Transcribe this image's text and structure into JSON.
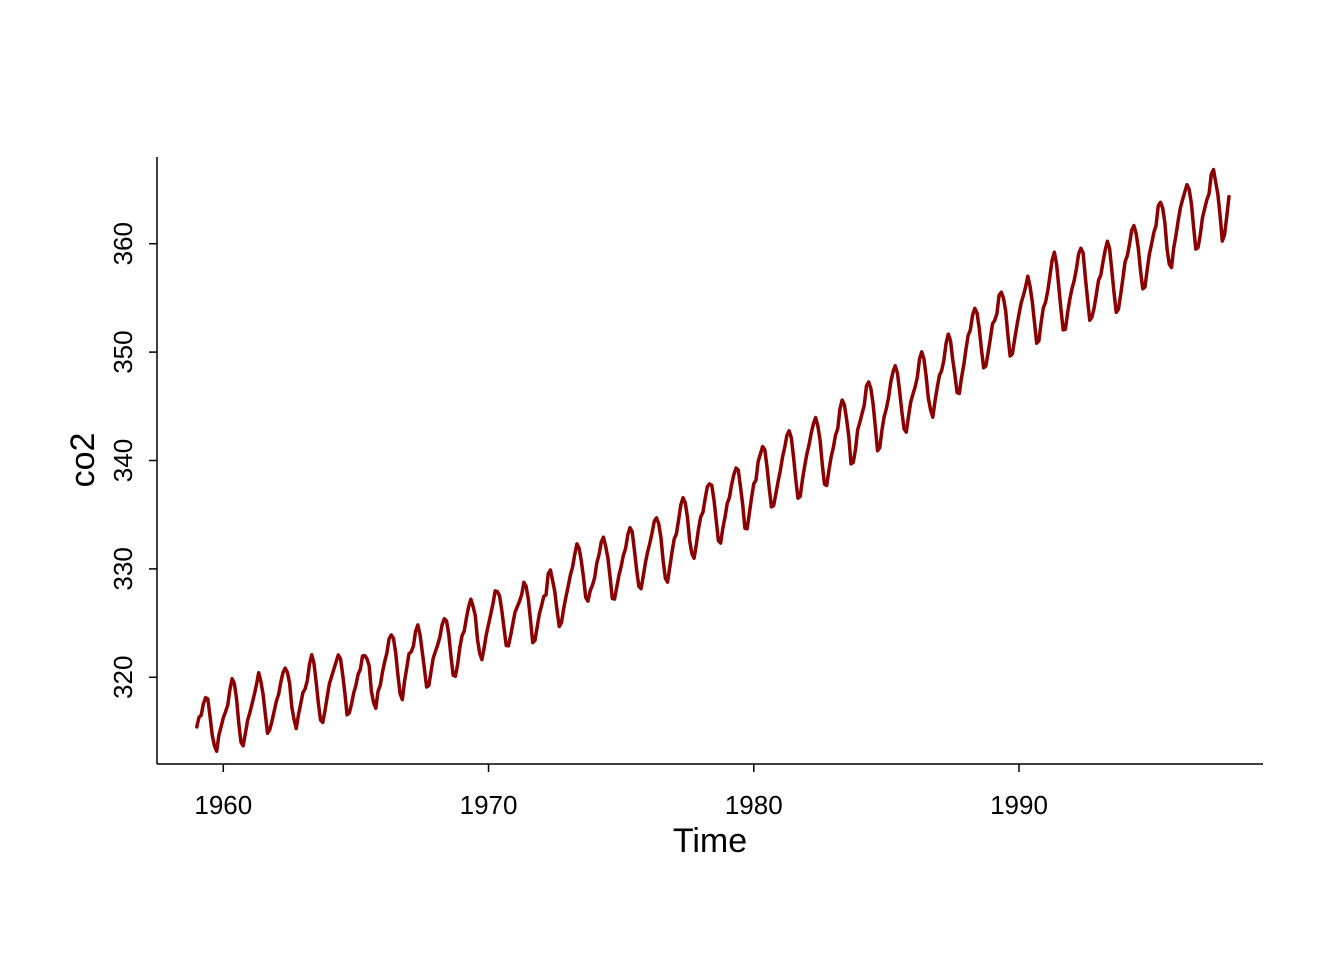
{
  "chart_data": {
    "type": "line",
    "title": "",
    "xlabel": "Time",
    "ylabel": "co2",
    "xlim": [
      1957.5,
      1999.2
    ],
    "ylim": [
      312.0,
      368.0
    ],
    "x_ticks": [
      1960,
      1970,
      1980,
      1990
    ],
    "y_ticks": [
      320,
      330,
      340,
      350,
      360
    ],
    "x_tick_labels": [
      "1960",
      "1970",
      "1980",
      "1990"
    ],
    "y_tick_labels": [
      "320",
      "330",
      "340",
      "350",
      "360"
    ],
    "grid": false,
    "legend": "none",
    "series": [
      {
        "color": "#8B0000",
        "x_start": 1959.0,
        "x_step": 0.0833333,
        "values": [
          315.42,
          316.31,
          316.5,
          317.56,
          318.13,
          318.0,
          316.39,
          314.65,
          313.68,
          313.18,
          314.66,
          315.43,
          316.27,
          316.81,
          317.42,
          318.87,
          319.87,
          319.43,
          318.01,
          315.74,
          314.0,
          313.68,
          314.84,
          316.03,
          316.73,
          317.54,
          318.38,
          319.31,
          320.42,
          319.61,
          318.42,
          316.63,
          314.83,
          315.16,
          315.94,
          316.85,
          317.78,
          318.4,
          319.53,
          320.42,
          320.85,
          320.45,
          319.45,
          317.25,
          316.11,
          315.27,
          316.53,
          317.53,
          318.58,
          318.92,
          319.7,
          321.22,
          322.08,
          321.31,
          319.58,
          317.61,
          316.05,
          315.83,
          316.91,
          318.2,
          319.41,
          320.07,
          320.74,
          321.4,
          322.06,
          321.73,
          320.27,
          318.54,
          316.54,
          316.71,
          317.53,
          318.55,
          319.27,
          320.28,
          320.73,
          321.97,
          322.0,
          321.71,
          321.05,
          318.71,
          317.66,
          317.14,
          318.7,
          319.25,
          320.46,
          321.43,
          322.23,
          323.54,
          323.91,
          323.59,
          322.24,
          320.2,
          318.48,
          317.94,
          319.63,
          320.87,
          322.17,
          322.34,
          322.88,
          324.25,
          324.83,
          323.93,
          322.38,
          320.76,
          319.1,
          319.24,
          320.56,
          321.8,
          322.4,
          322.99,
          323.73,
          324.86,
          325.4,
          325.2,
          323.98,
          321.95,
          320.18,
          320.09,
          321.16,
          322.74,
          323.83,
          324.26,
          325.47,
          326.5,
          327.21,
          326.54,
          325.72,
          323.5,
          322.22,
          321.62,
          322.69,
          323.95,
          324.89,
          325.82,
          326.77,
          327.97,
          327.91,
          327.5,
          326.18,
          324.53,
          322.93,
          322.9,
          323.85,
          324.96,
          326.01,
          326.51,
          327.01,
          327.62,
          328.76,
          328.4,
          327.2,
          325.27,
          323.2,
          323.4,
          324.63,
          325.85,
          326.6,
          327.47,
          327.58,
          329.56,
          329.9,
          328.92,
          327.88,
          326.16,
          324.68,
          325.04,
          326.34,
          327.39,
          328.37,
          329.4,
          330.14,
          331.33,
          332.31,
          331.9,
          330.7,
          329.15,
          327.35,
          327.02,
          327.99,
          328.48,
          329.18,
          330.55,
          331.32,
          332.48,
          332.92,
          332.08,
          331.01,
          329.23,
          327.27,
          327.21,
          328.29,
          329.41,
          330.23,
          331.25,
          331.87,
          333.14,
          333.8,
          333.43,
          331.73,
          329.9,
          328.4,
          328.17,
          329.32,
          330.59,
          331.58,
          332.39,
          333.33,
          334.41,
          334.71,
          334.17,
          332.89,
          330.77,
          329.14,
          328.78,
          330.14,
          331.52,
          332.75,
          333.24,
          334.53,
          335.9,
          336.57,
          336.1,
          334.76,
          332.59,
          331.42,
          330.98,
          332.24,
          333.68,
          334.8,
          335.22,
          336.47,
          337.59,
          337.84,
          337.72,
          336.37,
          334.51,
          332.6,
          332.38,
          333.75,
          334.78,
          336.05,
          336.59,
          337.79,
          338.71,
          339.3,
          339.12,
          337.56,
          335.92,
          333.75,
          333.7,
          335.12,
          336.56,
          337.84,
          338.19,
          339.91,
          340.6,
          341.29,
          341.0,
          339.39,
          337.43,
          335.72,
          335.84,
          336.93,
          338.04,
          339.06,
          340.3,
          341.21,
          342.33,
          342.74,
          342.08,
          340.32,
          338.26,
          336.52,
          336.68,
          338.19,
          339.44,
          340.57,
          341.44,
          342.53,
          343.39,
          343.96,
          343.18,
          341.88,
          339.65,
          337.81,
          337.69,
          339.09,
          340.32,
          341.2,
          342.35,
          342.93,
          344.77,
          345.58,
          345.14,
          343.81,
          342.21,
          339.69,
          339.82,
          340.98,
          342.82,
          343.52,
          344.33,
          345.11,
          346.88,
          347.25,
          346.62,
          345.22,
          343.11,
          340.9,
          341.18,
          342.8,
          344.04,
          344.79,
          345.82,
          347.25,
          348.17,
          348.74,
          348.07,
          346.38,
          344.51,
          342.92,
          342.62,
          344.06,
          345.38,
          346.11,
          346.78,
          347.68,
          349.37,
          350.03,
          349.37,
          347.76,
          345.73,
          344.68,
          343.99,
          345.48,
          346.72,
          347.84,
          348.29,
          349.23,
          350.8,
          351.66,
          351.07,
          349.33,
          347.92,
          346.27,
          346.18,
          347.64,
          348.78,
          350.25,
          351.54,
          352.05,
          353.41,
          354.04,
          353.62,
          352.22,
          350.27,
          348.55,
          348.72,
          349.91,
          351.18,
          352.6,
          352.92,
          353.53,
          355.26,
          355.52,
          354.97,
          353.75,
          351.52,
          349.64,
          349.83,
          351.14,
          352.37,
          353.5,
          354.55,
          355.23,
          356.04,
          357.0,
          356.07,
          354.67,
          352.76,
          350.82,
          351.04,
          352.69,
          354.07,
          354.59,
          355.63,
          357.03,
          358.48,
          359.22,
          358.12,
          356.06,
          353.92,
          352.05,
          352.11,
          353.64,
          354.89,
          355.88,
          356.63,
          357.72,
          359.07,
          359.58,
          359.17,
          356.94,
          354.92,
          352.94,
          353.23,
          354.09,
          355.33,
          356.63,
          357.1,
          358.32,
          359.41,
          360.23,
          359.55,
          357.53,
          355.48,
          353.67,
          353.95,
          355.3,
          356.78,
          358.34,
          358.89,
          359.95,
          361.25,
          361.67,
          360.94,
          359.55,
          357.49,
          355.84,
          356.0,
          357.59,
          359.05,
          359.98,
          361.03,
          361.66,
          363.48,
          363.82,
          363.3,
          361.94,
          359.5,
          358.11,
          357.8,
          359.61,
          360.74,
          362.09,
          363.29,
          364.06,
          364.76,
          365.45,
          365.01,
          363.7,
          361.54,
          359.51,
          359.65,
          360.8,
          362.38,
          363.23,
          364.06,
          364.61,
          366.4,
          366.84,
          365.68,
          364.52,
          362.57,
          360.24,
          360.83,
          362.49,
          364.34
        ]
      }
    ]
  }
}
